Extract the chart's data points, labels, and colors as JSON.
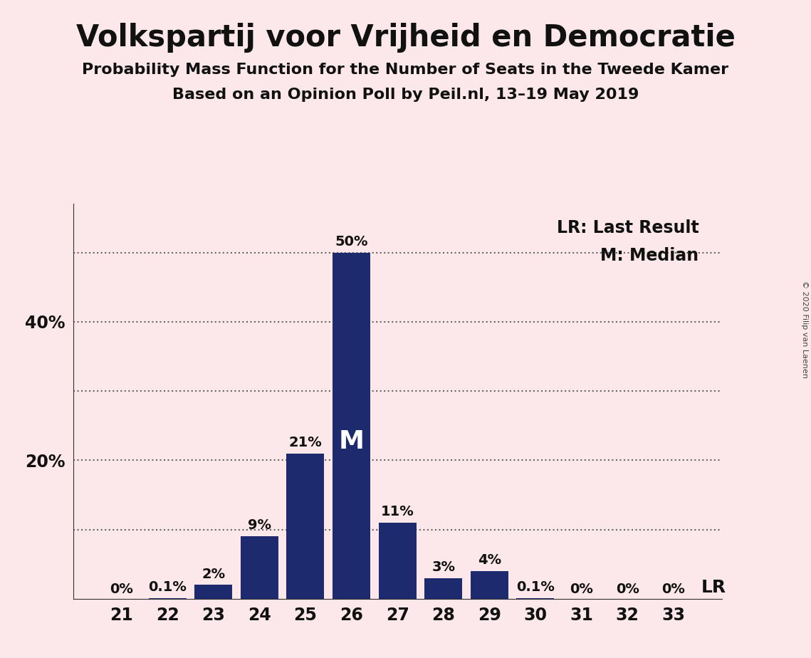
{
  "title": "Volkspartij voor Vrijheid en Democratie",
  "subtitle1": "Probability Mass Function for the Number of Seats in the Tweede Kamer",
  "subtitle2": "Based on an Opinion Poll by Peil.nl, 13–19 May 2019",
  "copyright": "© 2020 Filip van Laenen",
  "categories": [
    21,
    22,
    23,
    24,
    25,
    26,
    27,
    28,
    29,
    30,
    31,
    32,
    33
  ],
  "values": [
    0.0,
    0.1,
    2.0,
    9.0,
    21.0,
    50.0,
    11.0,
    3.0,
    4.0,
    0.1,
    0.0,
    0.0,
    0.0
  ],
  "labels": [
    "0%",
    "0.1%",
    "2%",
    "9%",
    "21%",
    "50%",
    "11%",
    "3%",
    "4%",
    "0.1%",
    "0%",
    "0%",
    "0%"
  ],
  "bar_color": "#1e2a6e",
  "background_color": "#fce8ea",
  "median_seat": 26,
  "lr_seat": 33,
  "ytick_values": [
    0,
    10,
    20,
    30,
    40,
    50
  ],
  "ymax": 57,
  "dotted_line_color": "#666666",
  "legend_lr_text": "LR: Last Result",
  "legend_m_text": "M: Median",
  "title_fontsize": 30,
  "subtitle_fontsize": 16,
  "label_fontsize": 14,
  "tick_fontsize": 17,
  "legend_fontsize": 17,
  "median_label_fontsize": 26,
  "lr_label_fontsize": 18,
  "ytick_display_values": [
    20,
    40
  ],
  "dotted_y_values": [
    10,
    20,
    30,
    40,
    50
  ]
}
